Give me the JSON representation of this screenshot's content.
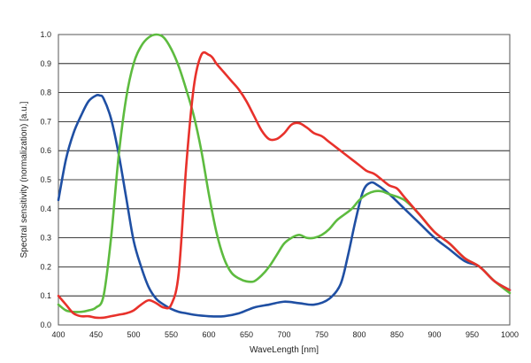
{
  "chart_data": {
    "type": "line",
    "xlabel": "WaveLength [nm]",
    "ylabel": "Spectral sensitivity (normalization) [a.u.]",
    "xlim": [
      400,
      1000
    ],
    "ylim": [
      0,
      1.0
    ],
    "x_ticks": [
      "400",
      "450",
      "500",
      "550",
      "600",
      "650",
      "700",
      "750",
      "800",
      "850",
      "900",
      "950",
      "1000"
    ],
    "y_ticks": [
      "0.0",
      "0.1",
      "0.2",
      "0.3",
      "0.4",
      "0.5",
      "0.6",
      "0.7",
      "0.8",
      "0.9",
      "1.0"
    ],
    "grid": "horizontal",
    "series": [
      {
        "color": "#1f4fa3",
        "x": [
          400,
          410,
          420,
          430,
          440,
          450,
          455,
          460,
          470,
          480,
          490,
          500,
          510,
          520,
          530,
          540,
          550,
          560,
          570,
          580,
          600,
          620,
          640,
          660,
          680,
          700,
          720,
          740,
          760,
          775,
          785,
          795,
          805,
          815,
          825,
          840,
          860,
          880,
          900,
          920,
          940,
          960,
          980,
          1000
        ],
        "y": [
          0.43,
          0.57,
          0.66,
          0.72,
          0.77,
          0.79,
          0.79,
          0.78,
          0.71,
          0.59,
          0.44,
          0.29,
          0.2,
          0.13,
          0.09,
          0.07,
          0.055,
          0.045,
          0.04,
          0.035,
          0.03,
          0.03,
          0.04,
          0.06,
          0.07,
          0.08,
          0.075,
          0.07,
          0.09,
          0.14,
          0.24,
          0.36,
          0.46,
          0.49,
          0.48,
          0.45,
          0.4,
          0.35,
          0.3,
          0.26,
          0.22,
          0.2,
          0.15,
          0.12
        ]
      },
      {
        "color": "#5dbb3f",
        "x": [
          400,
          410,
          420,
          430,
          440,
          450,
          460,
          470,
          480,
          490,
          500,
          510,
          520,
          530,
          540,
          550,
          560,
          570,
          580,
          590,
          600,
          610,
          620,
          630,
          640,
          650,
          660,
          670,
          680,
          690,
          700,
          710,
          720,
          730,
          740,
          750,
          760,
          770,
          780,
          790,
          800,
          810,
          820,
          830,
          840,
          860,
          880,
          900,
          920,
          940,
          960,
          980,
          1000
        ],
        "y": [
          0.07,
          0.05,
          0.045,
          0.045,
          0.05,
          0.06,
          0.1,
          0.3,
          0.58,
          0.78,
          0.9,
          0.96,
          0.99,
          1.0,
          0.99,
          0.95,
          0.89,
          0.81,
          0.72,
          0.6,
          0.45,
          0.32,
          0.23,
          0.18,
          0.16,
          0.15,
          0.15,
          0.17,
          0.2,
          0.24,
          0.28,
          0.3,
          0.31,
          0.3,
          0.3,
          0.31,
          0.33,
          0.36,
          0.38,
          0.4,
          0.43,
          0.45,
          0.46,
          0.46,
          0.45,
          0.43,
          0.38,
          0.32,
          0.28,
          0.23,
          0.2,
          0.15,
          0.11
        ]
      },
      {
        "color": "#e8312b",
        "x": [
          400,
          410,
          420,
          430,
          440,
          450,
          460,
          470,
          480,
          490,
          500,
          510,
          520,
          530,
          540,
          550,
          560,
          570,
          580,
          590,
          600,
          605,
          610,
          620,
          630,
          640,
          650,
          660,
          670,
          680,
          690,
          700,
          710,
          720,
          730,
          740,
          750,
          760,
          770,
          780,
          790,
          800,
          810,
          820,
          830,
          840,
          850,
          860,
          880,
          900,
          920,
          940,
          960,
          980,
          1000
        ],
        "y": [
          0.1,
          0.07,
          0.04,
          0.03,
          0.03,
          0.025,
          0.025,
          0.03,
          0.035,
          0.04,
          0.05,
          0.07,
          0.085,
          0.075,
          0.06,
          0.07,
          0.18,
          0.55,
          0.82,
          0.93,
          0.93,
          0.92,
          0.9,
          0.87,
          0.84,
          0.81,
          0.77,
          0.72,
          0.67,
          0.64,
          0.64,
          0.66,
          0.69,
          0.695,
          0.68,
          0.66,
          0.65,
          0.63,
          0.61,
          0.59,
          0.57,
          0.55,
          0.53,
          0.52,
          0.5,
          0.48,
          0.47,
          0.44,
          0.38,
          0.32,
          0.28,
          0.23,
          0.2,
          0.15,
          0.12
        ]
      }
    ]
  }
}
